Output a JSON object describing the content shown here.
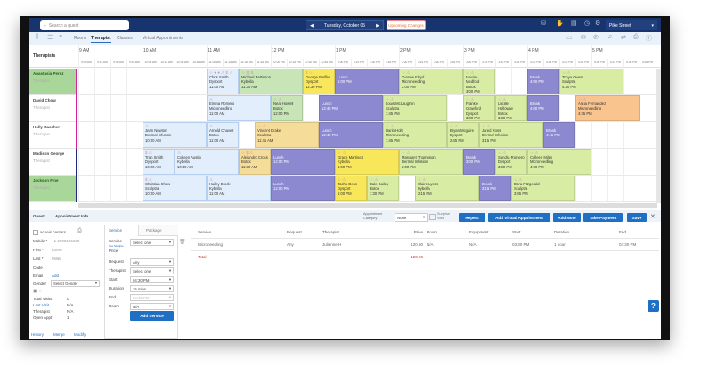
{
  "topbar": {
    "search_placeholder": "Search a guest",
    "date": "Tuesday, October 05",
    "prev": "◀",
    "next": "▶",
    "upcoming": "Upcoming Changes",
    "location": "Pike Street"
  },
  "subbar": {
    "tabs": [
      "Room",
      "Therapist",
      "Classes"
    ],
    "active": "Therapist",
    "virtual": "Virtual Appointments",
    "more": "⋮"
  },
  "schedule": {
    "header": "Therapists",
    "hours": [
      "9 AM",
      "10 AM",
      "11 AM",
      "12 PM",
      "1 PM",
      "2 PM",
      "3 PM",
      "4 PM",
      "5 PM"
    ],
    "quarters": [
      "9:00 AM",
      "9:15 AM",
      "9:30 AM",
      "9:45 AM",
      "10:00 AM",
      "10:15 AM",
      "10:30 AM",
      "10:45 AM",
      "11:00 AM",
      "11:15 AM",
      "11:30 AM",
      "11:45 AM",
      "12:00 PM",
      "12:15 PM",
      "12:30 PM",
      "12:45 PM",
      "1:00 PM",
      "1:15 PM",
      "1:30 PM",
      "1:45 PM",
      "2:00 PM",
      "2:15 PM",
      "2:30 PM",
      "2:45 PM",
      "3:00 PM",
      "3:15 PM",
      "3:30 PM",
      "3:45 PM",
      "4:00 PM",
      "4:15 PM",
      "4:30 PM",
      "4:45 PM",
      "5:00 PM",
      "5:15 PM",
      "5:30 PM",
      "5:45 PM"
    ],
    "therapists": [
      {
        "name": "Anastasia Perez",
        "role": "Therapist",
        "highlight": true,
        "bar": "#d0259a",
        "appts": [
          {
            "icons": "☆ ● ● ⚠ $ ☆",
            "guest": "Chris Smith",
            "service": "Dysport",
            "time": "11:00 AM",
            "min": 30,
            "color": "blue"
          },
          {
            "icons": "☆ ▥ $",
            "guest": "Michael Pattinson",
            "service": "Kybella",
            "time": "11:30 AM",
            "min": 60,
            "color": "green"
          },
          {
            "icons": "$ ☆",
            "guest": "George Pfeffer",
            "service": "Dysport",
            "time": "12:30 PM",
            "min": 30,
            "color": "yellow"
          },
          {
            "icons": "",
            "guest": "Lunch",
            "service": "",
            "time": "1:00 PM",
            "min": 60,
            "color": "purple"
          },
          {
            "icons": "☆ ⚠",
            "guest": "Yvonne Floyd",
            "service": "Microneedling",
            "time": "2:00 PM",
            "min": 60,
            "color": "lime"
          },
          {
            "icons": "☆ ⚠",
            "guest": "Maxine Medford",
            "service": "Botox",
            "time": "3:00 PM",
            "min": 30,
            "color": "lime"
          },
          {
            "icons": "",
            "guest": "Break",
            "service": "",
            "time": "4:00 PM",
            "min": 30,
            "color": "purple"
          },
          {
            "icons": "☆ ⚠",
            "guest": "Tonya Owen",
            "service": "Sculptra",
            "time": "4:30 PM",
            "min": 60,
            "color": "lime"
          }
        ]
      },
      {
        "name": "David Chow",
        "role": "Therapist",
        "highlight": false,
        "bar": "#d0259a",
        "appts": [
          {
            "icons": "⚠",
            "guest": "Emma Romero",
            "service": "Microneedling",
            "time": "11:00 AM",
            "min": 60,
            "color": "blue"
          },
          {
            "icons": "☆ ⚠",
            "guest": "Neal Howell",
            "service": "Botox",
            "time": "12:00 PM",
            "min": 30,
            "color": "green"
          },
          {
            "icons": "",
            "guest": "Lunch",
            "service": "",
            "time": "12:45 PM",
            "min": 60,
            "color": "purple"
          },
          {
            "icons": "☆ ⚠",
            "guest": "Louis McLaughlin",
            "service": "Sculptra",
            "time": "1:45 PM",
            "min": 60,
            "color": "lime"
          },
          {
            "icons": "☆ ⚠",
            "guest": "Frankie Crawford",
            "service": "Dysport",
            "time": "3:00 PM",
            "min": 30,
            "color": "lime"
          },
          {
            "icons": "☆ ⚠",
            "guest": "Lucille Holloway",
            "service": "Botox",
            "time": "3:30 PM",
            "min": 30,
            "color": "lime"
          },
          {
            "icons": "",
            "guest": "Break",
            "service": "",
            "time": "4:00 PM",
            "min": 30,
            "color": "purple"
          },
          {
            "icons": "☆ ⚠",
            "guest": "Alicia Fernandez",
            "service": "Microneedling",
            "time": "4:45 PM",
            "min": 60,
            "color": "orange"
          }
        ]
      },
      {
        "name": "Holly Rascher",
        "role": "Therapist",
        "highlight": false,
        "bar": "#d0259a",
        "appts": [
          {
            "icons": "⚠",
            "guest": "Jean Newton",
            "service": "Dermal Infusion",
            "time": "10:00 AM",
            "min": 60,
            "color": "blue"
          },
          {
            "icons": "⚠",
            "guest": "Arnold Chavez",
            "service": "Botox",
            "time": "11:00 AM",
            "min": 30,
            "color": "blue"
          },
          {
            "icons": "☆ ⚠",
            "guest": "Vincent Drake",
            "service": "Sculptra",
            "time": "11:45 AM",
            "min": 60,
            "color": "tan"
          },
          {
            "icons": "",
            "guest": "Lunch",
            "service": "",
            "time": "12:45 PM",
            "min": 60,
            "color": "purple"
          },
          {
            "icons": "☆ ⚠",
            "guest": "Darin Holt",
            "service": "Microneedling",
            "time": "1:45 PM",
            "min": 60,
            "color": "lime"
          },
          {
            "icons": "☆ ⚠",
            "guest": "Bryan Mcguire",
            "service": "Dysport",
            "time": "2:45 PM",
            "min": 30,
            "color": "lime"
          },
          {
            "icons": "☆ ⚠",
            "guest": "Jared Ross",
            "service": "Dermal Infusion",
            "time": "3:15 PM",
            "min": 60,
            "color": "lime"
          },
          {
            "icons": "",
            "guest": "Break",
            "service": "",
            "time": "4:15 PM",
            "min": 30,
            "color": "purple"
          }
        ]
      },
      {
        "name": "Madison George",
        "role": "Therapist",
        "highlight": false,
        "bar": "#1c2a7a",
        "appts": [
          {
            "icons": "$ ⚠",
            "guest": "Tran Smith",
            "service": "Dysport",
            "time": "10:00 AM",
            "min": 30,
            "color": "blue"
          },
          {
            "icons": "⚠",
            "guest": "Colleen Austin",
            "service": "Kybella",
            "time": "10:30 AM",
            "min": 60,
            "color": "blue"
          },
          {
            "icons": "☆ $ ⚠",
            "guest": "Alejandro Cross",
            "service": "Botox",
            "time": "11:30 AM",
            "min": 30,
            "color": "tan"
          },
          {
            "icons": "",
            "guest": "Lunch",
            "service": "",
            "time": "12:00 PM",
            "min": 60,
            "color": "purple"
          },
          {
            "icons": "☆ ⚠",
            "guest": "Grace Martinez",
            "service": "Kybella",
            "time": "1:00 PM",
            "min": 60,
            "color": "yellow"
          },
          {
            "icons": "☆ ⚠",
            "guest": "Margaret Thompson",
            "service": "Dermal Infusion",
            "time": "2:00 PM",
            "min": 60,
            "color": "lime"
          },
          {
            "icons": "",
            "guest": "Break",
            "service": "",
            "time": "3:00 PM",
            "min": 30,
            "color": "purple"
          },
          {
            "icons": "☆ ⚠",
            "guest": "Sandra Romero",
            "service": "Dysport",
            "time": "3:30 PM",
            "min": 30,
            "color": "lime"
          },
          {
            "icons": "☆ ⚠",
            "guest": "Colleen Miles",
            "service": "Microneedling",
            "time": "4:00 PM",
            "min": 60,
            "color": "lime"
          }
        ]
      },
      {
        "name": "Jackson Fine",
        "role": "Therapist",
        "highlight": true,
        "bar": "#1c2a7a",
        "appts": [
          {
            "icons": "$ ⚠",
            "guest": "Christian Shaw",
            "service": "Sculptra",
            "time": "10:00 AM",
            "min": 60,
            "color": "blue"
          },
          {
            "icons": "⚠",
            "guest": "Hailey Brock",
            "service": "Kybella",
            "time": "11:00 AM",
            "min": 60,
            "color": "blue"
          },
          {
            "icons": "",
            "guest": "Lunch",
            "service": "",
            "time": "12:00 PM",
            "min": 60,
            "color": "purple"
          },
          {
            "icons": "☆ ⚠",
            "guest": "Tasha Dean",
            "service": "Dysport",
            "time": "1:00 PM",
            "min": 30,
            "color": "yellow"
          },
          {
            "icons": "☆ ⚠",
            "guest": "Dale Bailey",
            "service": "Botox",
            "time": "1:30 PM",
            "min": 30,
            "color": "lime"
          },
          {
            "icons": "☆ ⚠",
            "guest": "Claire Lyons",
            "service": "Kybella",
            "time": "2:15 PM",
            "min": 60,
            "color": "lime"
          },
          {
            "icons": "",
            "guest": "Break",
            "service": "",
            "time": "3:15 PM",
            "min": 30,
            "color": "purple"
          },
          {
            "icons": "☆ ⚠",
            "guest": "Dora Fitzgerald",
            "service": "Sculptra",
            "time": "3:45 PM",
            "min": 60,
            "color": "lime"
          }
        ]
      }
    ]
  },
  "bottom": {
    "tabs": [
      "Guest",
      "Appointment Info"
    ],
    "category_label": "Appointment Category",
    "category_value": "None",
    "surprise_label": "Surprise Visit",
    "buttons": {
      "repeat": "Repeat",
      "virtual": "Add Virtual Appointment",
      "note": "Add Note",
      "payment": "Take Payment",
      "save": "Save",
      "close": "✕"
    },
    "guest": {
      "company": "acneis centers",
      "mobile_label": "Mobile *",
      "mobile": "+1 2008195690",
      "first_label": "First *",
      "first": "Loren",
      "last_label": "Last *",
      "last": "Miller",
      "code_label": "Code",
      "email_label": "Email",
      "email_add": "Add",
      "gender_label": "Gender",
      "gender": "Select Gender",
      "total_visits_label": "Total Visits",
      "total_visits": "0",
      "last_visit_label": "Last Visit",
      "last_visit": "N/A",
      "therapist_label": "Therapist",
      "therapist": "N/A",
      "open_label": "Open Appt",
      "open": "1",
      "links": [
        "History",
        "Merge",
        "Modify"
      ]
    },
    "service_form": {
      "tabs": [
        "Service",
        "Package"
      ],
      "service_label": "Service",
      "see_multiple": "See Multiple",
      "price_label": "Price",
      "service": "Select one",
      "request_label": "Request",
      "request": "Any",
      "therapist_label": "Therapist",
      "therapist": "Select one",
      "start_label": "Start",
      "start": "04:30 PM",
      "duration_label": "Duration",
      "duration": "15 mins",
      "end_label": "End",
      "end": "04:45 PM",
      "room_label": "Room",
      "room": "N/A",
      "add": "Add Service"
    },
    "table": {
      "headers": [
        "Service",
        "Request",
        "Therapist",
        "Price",
        "Room",
        "Equipment",
        "Start",
        "Duration",
        "End"
      ],
      "rows": [
        [
          "Microneedling",
          "Any",
          "Julienne H",
          "120.00",
          "N/A",
          "N/A",
          "03:30 PM",
          "1 hour",
          "04:30 PM"
        ]
      ],
      "total_label": "Total",
      "total": "120.00"
    }
  },
  "help": "?",
  "colors": {
    "navy": "#17346e",
    "accent": "#1f6fc5",
    "lunch": "#8c89d0"
  }
}
